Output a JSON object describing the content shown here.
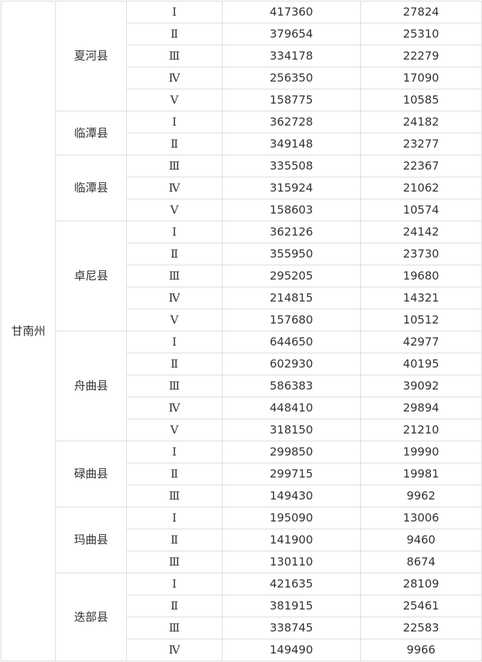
{
  "table": {
    "prefecture": "甘南州",
    "counties": [
      {
        "name": "夏河县",
        "rows": [
          [
            "Ⅰ",
            "417360",
            "27824"
          ],
          [
            "Ⅱ",
            "379654",
            "25310"
          ],
          [
            "Ⅲ",
            "334178",
            "22279"
          ],
          [
            "Ⅳ",
            "256350",
            "17090"
          ],
          [
            "Ⅴ",
            "158775",
            "10585"
          ]
        ]
      },
      {
        "name": "临潭县",
        "rows": [
          [
            "Ⅰ",
            "362728",
            "24182"
          ],
          [
            "Ⅱ",
            "349148",
            "23277"
          ]
        ]
      },
      {
        "name": "临潭县",
        "rows": [
          [
            "Ⅲ",
            "335508",
            "22367"
          ],
          [
            "Ⅳ",
            "315924",
            "21062"
          ],
          [
            "Ⅴ",
            "158603",
            "10574"
          ]
        ]
      },
      {
        "name": "卓尼县",
        "rows": [
          [
            "Ⅰ",
            "362126",
            "24142"
          ],
          [
            "Ⅱ",
            "355950",
            "23730"
          ],
          [
            "Ⅲ",
            "295205",
            "19680"
          ],
          [
            "Ⅳ",
            "214815",
            "14321"
          ],
          [
            "Ⅴ",
            "157680",
            "10512"
          ]
        ]
      },
      {
        "name": "舟曲县",
        "rows": [
          [
            "Ⅰ",
            "644650",
            "42977"
          ],
          [
            "Ⅱ",
            "602930",
            "40195"
          ],
          [
            "Ⅲ",
            "586383",
            "39092"
          ],
          [
            "Ⅳ",
            "448410",
            "29894"
          ],
          [
            "Ⅴ",
            "318150",
            "21210"
          ]
        ]
      },
      {
        "name": "碌曲县",
        "rows": [
          [
            "Ⅰ",
            "299850",
            "19990"
          ],
          [
            "Ⅱ",
            "299715",
            "19981"
          ],
          [
            "Ⅲ",
            "149430",
            "9962"
          ]
        ]
      },
      {
        "name": "玛曲县",
        "rows": [
          [
            "Ⅰ",
            "195090",
            "13006"
          ],
          [
            "Ⅱ",
            "141900",
            "9460"
          ],
          [
            "Ⅲ",
            "130110",
            "8674"
          ]
        ]
      },
      {
        "name": "迭部县",
        "rows": [
          [
            "Ⅰ",
            "421635",
            "28109"
          ],
          [
            "Ⅱ",
            "381915",
            "25461"
          ],
          [
            "Ⅲ",
            "338745",
            "22583"
          ],
          [
            "Ⅳ",
            "149490",
            "9966"
          ]
        ]
      }
    ]
  }
}
